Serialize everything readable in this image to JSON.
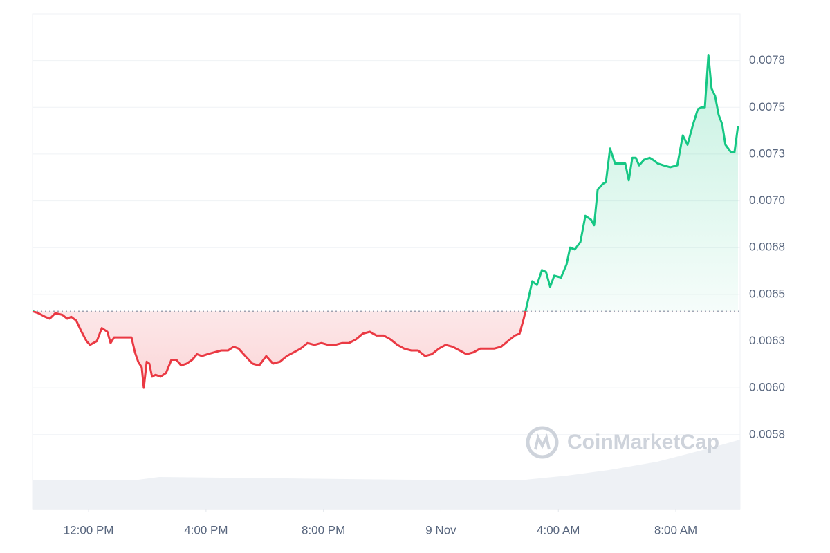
{
  "chart_data": {
    "type": "line",
    "watermark": "CoinMarketCap",
    "x": [
      10.09,
      10.28,
      10.52,
      10.68,
      10.87,
      11.11,
      11.27,
      11.41,
      11.58,
      11.76,
      11.93,
      12.05,
      12.16,
      12.28,
      12.45,
      12.64,
      12.75,
      12.87,
      13.04,
      13.22,
      13.46,
      13.58,
      13.69,
      13.81,
      13.88,
      13.98,
      14.07,
      14.16,
      14.28,
      14.45,
      14.64,
      14.82,
      14.99,
      15.15,
      15.34,
      15.53,
      15.69,
      15.86,
      16.05,
      16.28,
      16.52,
      16.75,
      16.94,
      17.11,
      17.34,
      17.58,
      17.81,
      18.05,
      18.28,
      18.52,
      18.75,
      18.99,
      19.22,
      19.46,
      19.69,
      19.93,
      20.16,
      20.4,
      20.64,
      20.87,
      21.11,
      21.34,
      21.58,
      21.81,
      22.05,
      22.28,
      22.52,
      22.75,
      22.99,
      23.22,
      23.46,
      23.69,
      23.93,
      24.16,
      24.4,
      24.64,
      24.87,
      25.11,
      25.34,
      25.58,
      25.81,
      26.05,
      26.28,
      26.52,
      26.68,
      26.82,
      26.94,
      27.11,
      27.27,
      27.44,
      27.58,
      27.72,
      27.86,
      28.09,
      28.28,
      28.4,
      28.56,
      28.75,
      28.92,
      29.11,
      29.22,
      29.34,
      29.51,
      29.62,
      29.76,
      29.93,
      30.09,
      30.28,
      30.4,
      30.52,
      30.64,
      30.75,
      30.92,
      31.11,
      31.22,
      31.39,
      31.58,
      31.81,
      32.05,
      32.24,
      32.4,
      32.59,
      32.75,
      32.87,
      32.99,
      33.11,
      33.22,
      33.34,
      33.46,
      33.58,
      33.69,
      33.88,
      34.0,
      34.12
    ],
    "series": [
      {
        "color": "#16c784",
        "values": [
          0.00641,
          0.0064,
          0.00638,
          0.00637,
          0.0064,
          0.00639,
          0.00637,
          0.00638,
          0.00636,
          0.0063,
          0.00625,
          0.00623,
          0.00624,
          0.00625,
          0.00632,
          0.0063,
          0.00624,
          0.00627,
          0.00627,
          0.00627,
          0.00627,
          0.00619,
          0.00614,
          0.00611,
          0.006,
          0.00614,
          0.00613,
          0.00606,
          0.00607,
          0.00606,
          0.00608,
          0.00615,
          0.00615,
          0.00612,
          0.00613,
          0.00615,
          0.00618,
          0.00617,
          0.00618,
          0.00619,
          0.0062,
          0.0062,
          0.00622,
          0.00621,
          0.00617,
          0.00613,
          0.00612,
          0.00617,
          0.00613,
          0.00614,
          0.00617,
          0.00619,
          0.00621,
          0.00624,
          0.00623,
          0.00624,
          0.00623,
          0.00623,
          0.00624,
          0.00624,
          0.00626,
          0.00629,
          0.0063,
          0.00628,
          0.00628,
          0.00626,
          0.00623,
          0.00621,
          0.0062,
          0.0062,
          0.00617,
          0.00618,
          0.00621,
          0.00623,
          0.00622,
          0.0062,
          0.00618,
          0.00619,
          0.00621,
          0.00621,
          0.00621,
          0.00622,
          0.00625,
          0.00628,
          0.00629,
          0.00637,
          0.00645,
          0.00657,
          0.00655,
          0.00663,
          0.00662,
          0.00654,
          0.0066,
          0.00659,
          0.00666,
          0.00675,
          0.00674,
          0.00678,
          0.00692,
          0.0069,
          0.00687,
          0.00706,
          0.00709,
          0.0071,
          0.00728,
          0.0072,
          0.0072,
          0.0072,
          0.00711,
          0.00723,
          0.00723,
          0.00719,
          0.00722,
          0.00723,
          0.00722,
          0.0072,
          0.00719,
          0.00718,
          0.00719,
          0.00735,
          0.0073,
          0.00741,
          0.00749,
          0.0075,
          0.0075,
          0.00778,
          0.0076,
          0.00756,
          0.00746,
          0.00741,
          0.0073,
          0.00726,
          0.00726,
          0.0074
        ]
      }
    ],
    "below_color": "#ea3943",
    "baseline": 0.00641,
    "xlim": [
      10.09,
      34.19
    ],
    "xticks": [
      {
        "value": 12,
        "label": "12:00 PM"
      },
      {
        "value": 16,
        "label": "4:00 PM"
      },
      {
        "value": 20,
        "label": "8:00 PM"
      },
      {
        "value": 24,
        "label": "9 Nov"
      },
      {
        "value": 28,
        "label": "4:00 AM"
      },
      {
        "value": 32,
        "label": "8:00 AM"
      }
    ],
    "ylim": [
      0.00535,
      0.008
    ],
    "yticks": [
      {
        "value": 0.00575,
        "label": "0.0058"
      },
      {
        "value": 0.006,
        "label": "0.0060"
      },
      {
        "value": 0.00625,
        "label": "0.0063"
      },
      {
        "value": 0.0065,
        "label": "0.0065"
      },
      {
        "value": 0.00675,
        "label": "0.0068"
      },
      {
        "value": 0.007,
        "label": "0.0070"
      },
      {
        "value": 0.00725,
        "label": "0.0073"
      },
      {
        "value": 0.0075,
        "label": "0.0075"
      },
      {
        "value": 0.00775,
        "label": "0.0078"
      }
    ],
    "grid": true
  }
}
